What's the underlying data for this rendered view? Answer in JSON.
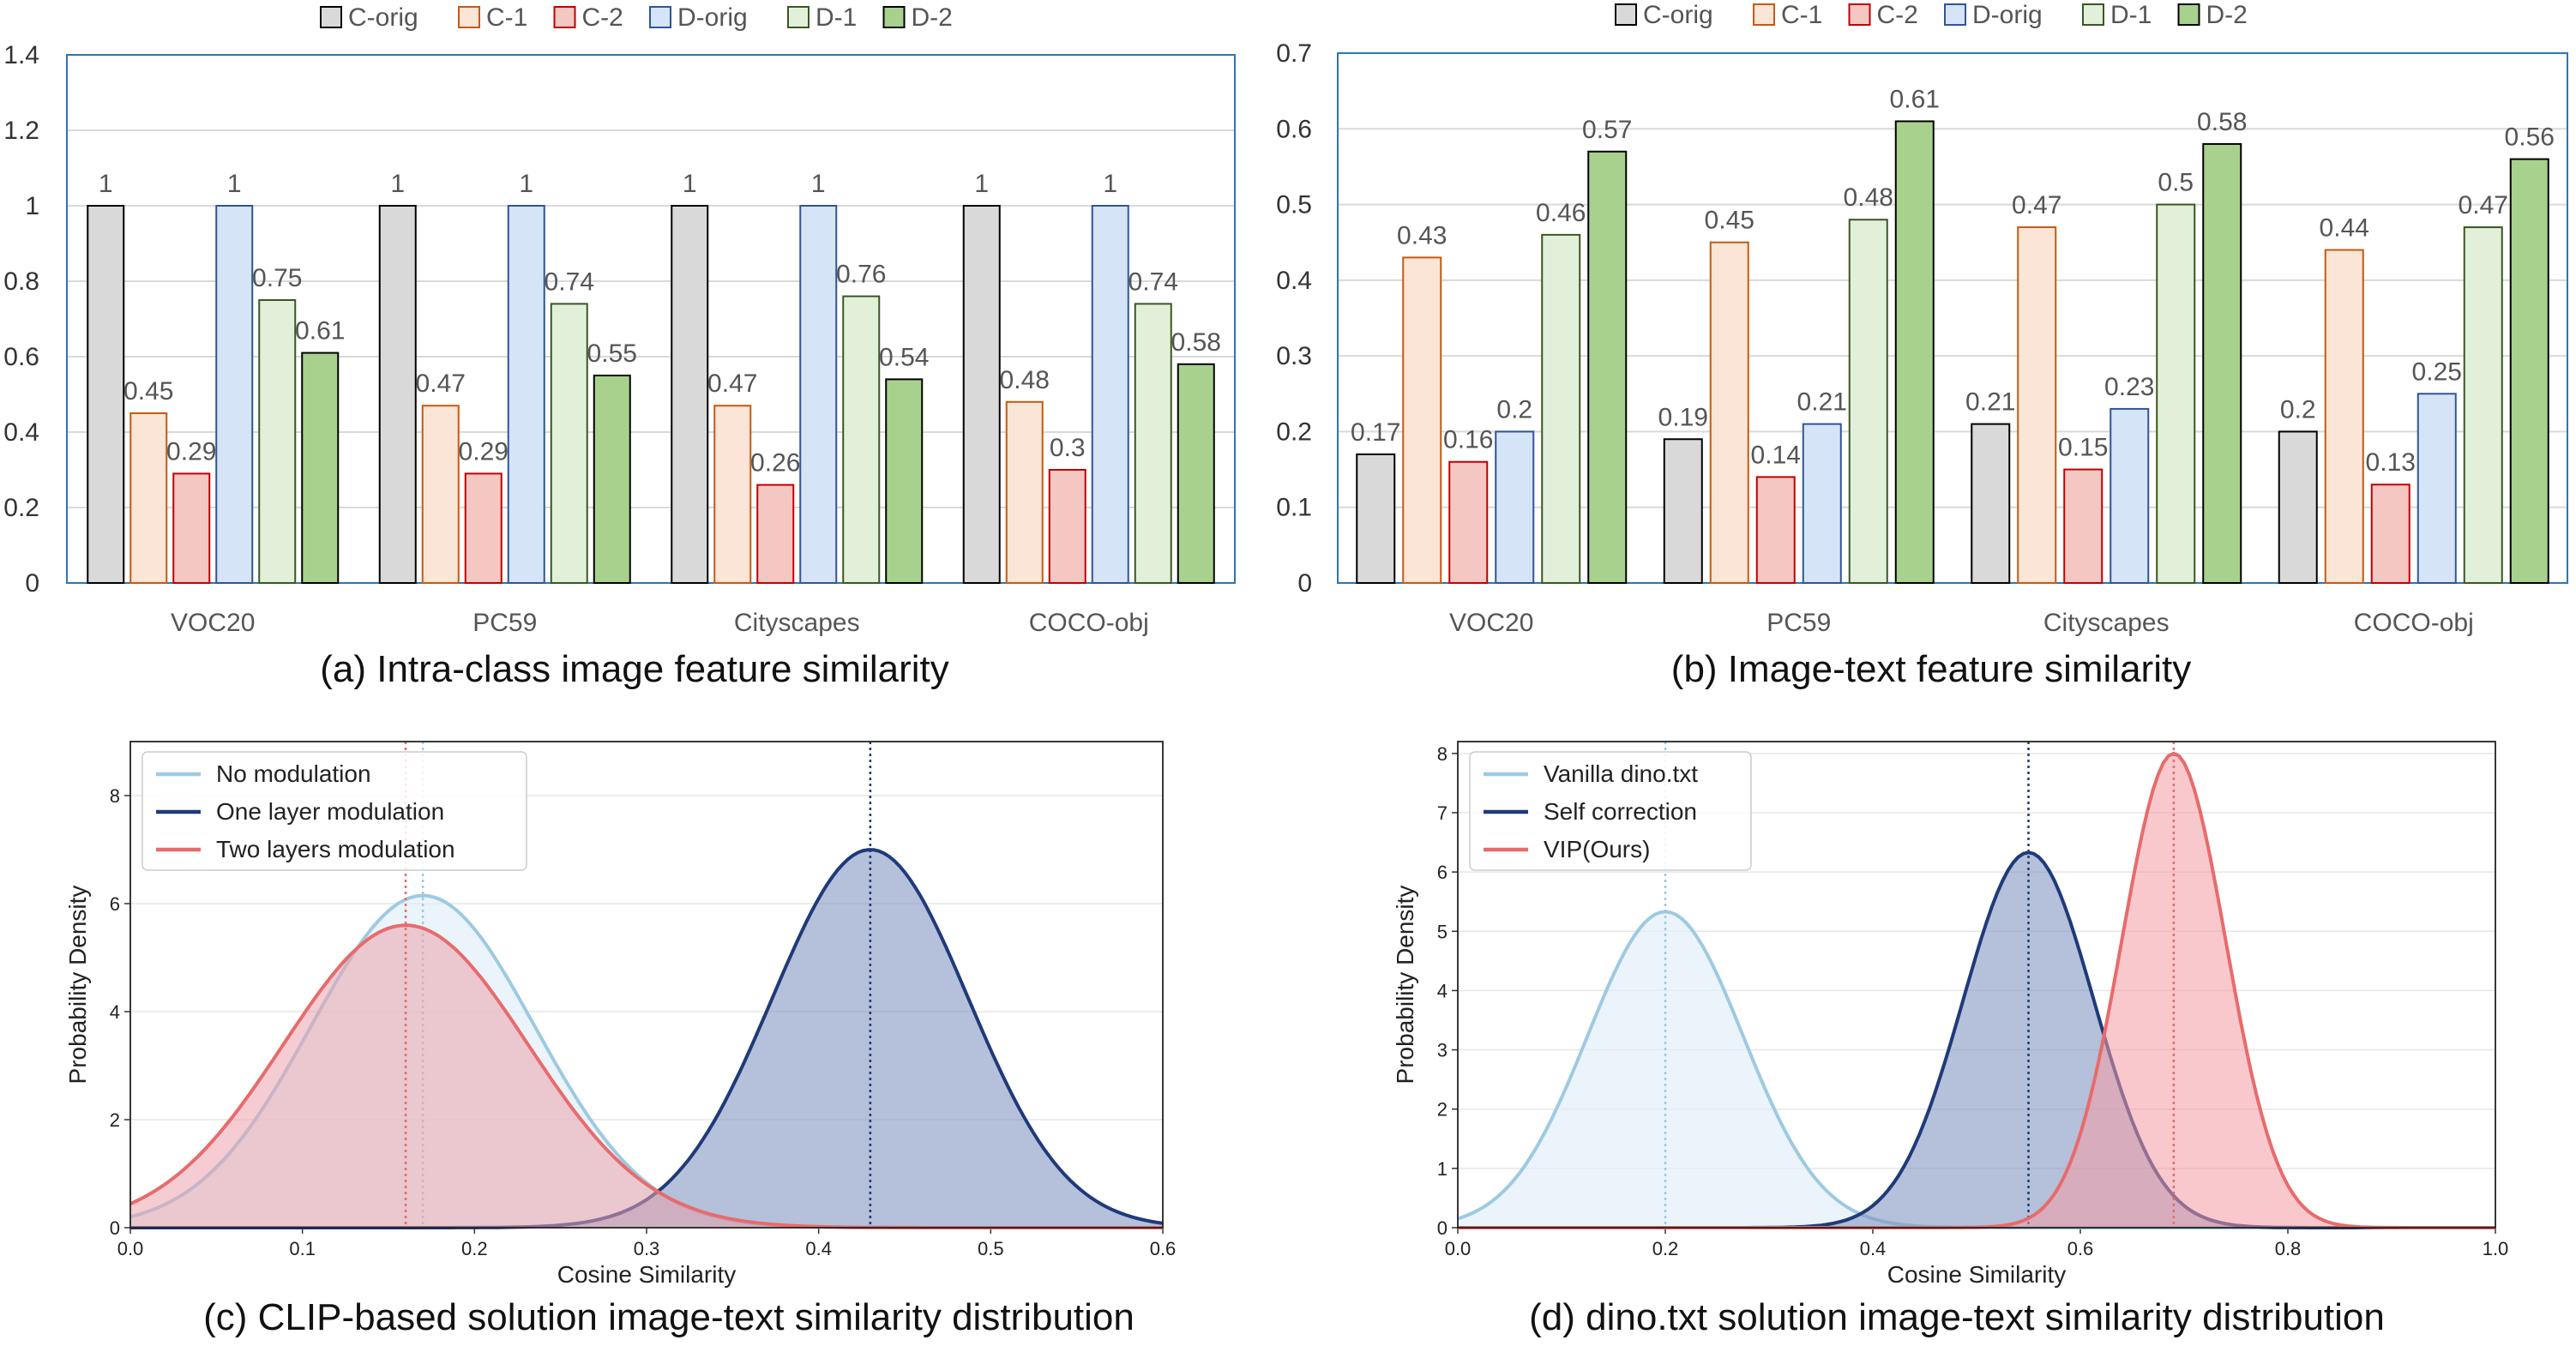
{
  "figure": {
    "captions": [
      "(a) Intra-class image feature similarity",
      "(b) Image-text feature similarity",
      "(c) CLIP-based solution image-text similarity distribution",
      "(d) dino.txt solution image-text similarity distribution"
    ]
  },
  "chart_data": [
    {
      "type": "bar",
      "title": "",
      "xlabel": "",
      "ylabel": "",
      "ylim": [
        0,
        1.4
      ],
      "yticks": [
        "0",
        "0.2",
        "0.4",
        "0.6",
        "0.8",
        "1",
        "1.2",
        "1.4"
      ],
      "grid": true,
      "legend_position": "top",
      "categories": [
        "VOC20",
        "PC59",
        "Cityscapes",
        "COCO-obj"
      ],
      "series": [
        {
          "name": "C-orig",
          "values": [
            1,
            1,
            1,
            1
          ],
          "color": "#d9d9d9",
          "edge": "#000000"
        },
        {
          "name": "C-1",
          "values": [
            0.45,
            0.47,
            0.47,
            0.48
          ],
          "color": "#fbe5d6",
          "edge": "#c55a11"
        },
        {
          "name": "C-2",
          "values": [
            0.29,
            0.29,
            0.26,
            0.3
          ],
          "color": "#f4c7c3",
          "edge": "#c00000"
        },
        {
          "name": "D-orig",
          "values": [
            1,
            1,
            1,
            1
          ],
          "color": "#d6e4f7",
          "edge": "#2f5597"
        },
        {
          "name": "D-1",
          "values": [
            0.75,
            0.74,
            0.76,
            0.74
          ],
          "color": "#e2f0d9",
          "edge": "#385723"
        },
        {
          "name": "D-2",
          "values": [
            0.61,
            0.55,
            0.54,
            0.58
          ],
          "color": "#a9d18e",
          "edge": "#000000"
        }
      ]
    },
    {
      "type": "bar",
      "title": "",
      "xlabel": "",
      "ylabel": "",
      "ylim": [
        0,
        0.7
      ],
      "yticks": [
        "0",
        "0.1",
        "0.2",
        "0.3",
        "0.4",
        "0.5",
        "0.6",
        "0.7"
      ],
      "grid": true,
      "legend_position": "top",
      "categories": [
        "VOC20",
        "PC59",
        "Cityscapes",
        "COCO-obj"
      ],
      "series": [
        {
          "name": "C-orig",
          "values": [
            0.17,
            0.19,
            0.21,
            0.2
          ],
          "color": "#d9d9d9",
          "edge": "#000000"
        },
        {
          "name": "C-1",
          "values": [
            0.43,
            0.45,
            0.47,
            0.44
          ],
          "color": "#fbe5d6",
          "edge": "#c55a11"
        },
        {
          "name": "C-2",
          "values": [
            0.16,
            0.14,
            0.15,
            0.13
          ],
          "color": "#f4c7c3",
          "edge": "#c00000"
        },
        {
          "name": "D-orig",
          "values": [
            0.2,
            0.21,
            0.23,
            0.25
          ],
          "color": "#d6e4f7",
          "edge": "#2f5597"
        },
        {
          "name": "D-1",
          "values": [
            0.46,
            0.48,
            0.5,
            0.47
          ],
          "color": "#e2f0d9",
          "edge": "#385723"
        },
        {
          "name": "D-2",
          "values": [
            0.57,
            0.61,
            0.58,
            0.56
          ],
          "color": "#a9d18e",
          "edge": "#000000"
        }
      ]
    },
    {
      "type": "area",
      "title": "",
      "xlabel": "Cosine Similarity",
      "ylabel": "Probability Density",
      "xlim": [
        0,
        0.6
      ],
      "ylim": [
        0,
        9
      ],
      "xticks": [
        "0.0",
        "0.1",
        "0.2",
        "0.3",
        "0.4",
        "0.5",
        "0.6"
      ],
      "yticks": [
        "0",
        "2",
        "4",
        "6",
        "8"
      ],
      "grid": true,
      "legend_position": "top-left",
      "series": [
        {
          "name": "No modulation",
          "mean": 0.17,
          "std": 0.065,
          "peak": 6.15,
          "color": "#9ecae1",
          "fill": "#e3eff8",
          "fill_opacity": 0.7
        },
        {
          "name": "One layer modulation",
          "mean": 0.43,
          "std": 0.057,
          "peak": 7.0,
          "color": "#1f3a7a",
          "fill": "#8496c2",
          "fill_opacity": 0.6
        },
        {
          "name": "Two layers modulation",
          "mean": 0.16,
          "std": 0.071,
          "peak": 5.6,
          "color": "#e86b6b",
          "fill": "#eba3ad",
          "fill_opacity": 0.55
        }
      ]
    },
    {
      "type": "area",
      "title": "",
      "xlabel": "Cosine Similarity",
      "ylabel": "Probability Density",
      "xlim": [
        0,
        1.0
      ],
      "ylim": [
        0,
        8.2
      ],
      "xticks": [
        "0.0",
        "0.2",
        "0.4",
        "0.6",
        "0.8",
        "1.0"
      ],
      "yticks": [
        "0",
        "1",
        "2",
        "3",
        "4",
        "5",
        "6",
        "7",
        "8"
      ],
      "grid": true,
      "legend_position": "top-left",
      "series": [
        {
          "name": "Vanilla dino.txt",
          "mean": 0.2,
          "std": 0.075,
          "peak": 5.33,
          "color": "#9ecae1",
          "fill": "#e3eff8",
          "fill_opacity": 0.7
        },
        {
          "name": "Self correction",
          "mean": 0.55,
          "std": 0.063,
          "peak": 6.33,
          "color": "#1f3a7a",
          "fill": "#8496c2",
          "fill_opacity": 0.6
        },
        {
          "name": "VIP(Ours)",
          "mean": 0.69,
          "std": 0.05,
          "peak": 8.0,
          "color": "#e86b6b",
          "fill": "#f29aa4",
          "fill_opacity": 0.55
        }
      ]
    }
  ]
}
